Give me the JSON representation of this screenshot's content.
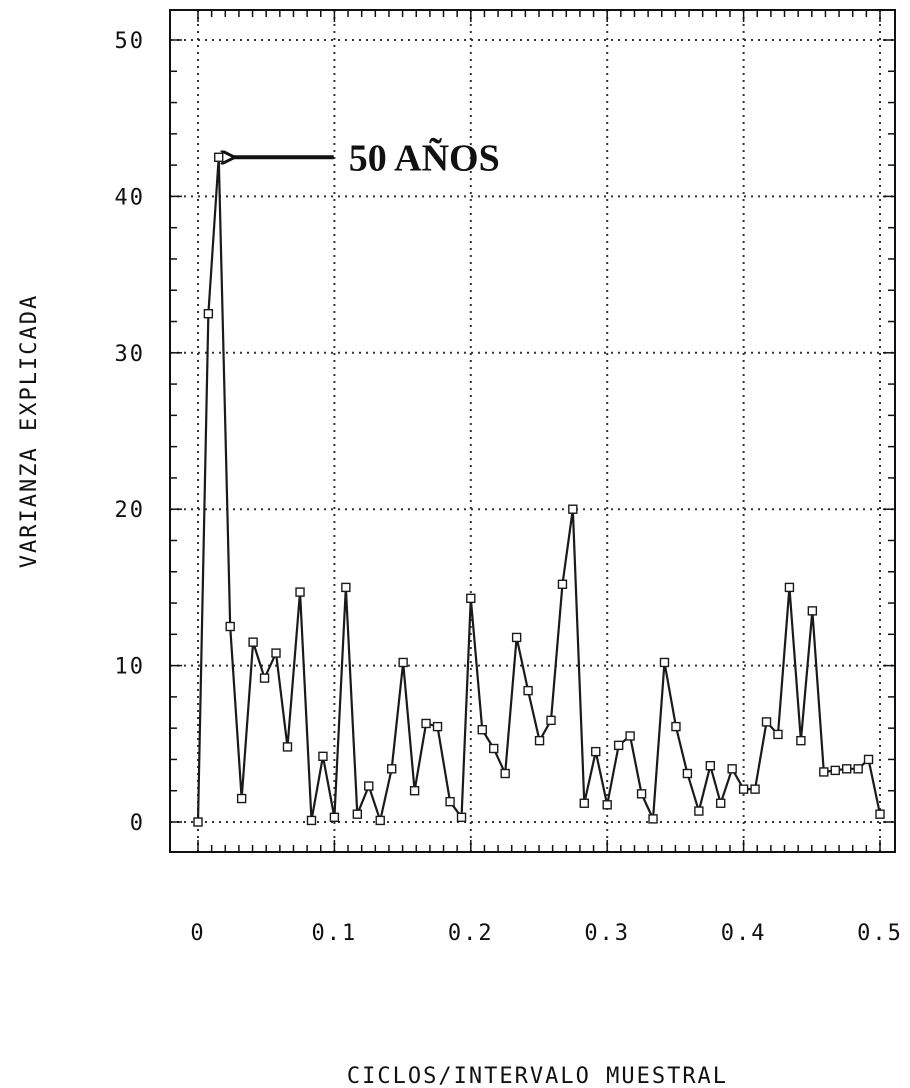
{
  "chart_data": {
    "type": "line",
    "xlabel": "CICLOS/INTERVALO MUESTRAL",
    "ylabel": "VARIANZA EXPLICADA",
    "xlim": [
      0,
      0.5
    ],
    "ylim": [
      0,
      50
    ],
    "x_ticks": [
      "0",
      "0.1",
      "0.2",
      "0.3",
      "0.4",
      "0.5"
    ],
    "y_ticks": [
      "0",
      "10",
      "20",
      "30",
      "40",
      "50"
    ],
    "x_tick_values": [
      0,
      0.1,
      0.2,
      0.3,
      0.4,
      0.5
    ],
    "y_tick_values": [
      0,
      10,
      20,
      30,
      40,
      50
    ],
    "grid": true,
    "marker": "square",
    "annotation": {
      "text": "50 AÑOS",
      "x": 0.0152,
      "y": 42.5
    },
    "series": [
      {
        "x": [
          0,
          0.0076,
          0.0152,
          0.0236,
          0.032,
          0.0404,
          0.0488,
          0.0572,
          0.0656,
          0.0748,
          0.0832,
          0.0916,
          0.1,
          0.1084,
          0.1168,
          0.1252,
          0.1336,
          0.142,
          0.1504,
          0.1588,
          0.1672,
          0.1756,
          0.1848,
          0.1932,
          0.2,
          0.2084,
          0.2168,
          0.2252,
          0.2336,
          0.242,
          0.2504,
          0.2588,
          0.2672,
          0.2748,
          0.2832,
          0.2916,
          0.3,
          0.3084,
          0.3168,
          0.3252,
          0.3336,
          0.342,
          0.3504,
          0.3588,
          0.3672,
          0.3756,
          0.3832,
          0.3916,
          0.4,
          0.4084,
          0.4168,
          0.4252,
          0.4336,
          0.442,
          0.4504,
          0.4588,
          0.4672,
          0.4756,
          0.484,
          0.4916,
          0.5
        ],
        "values": [
          0,
          32.5,
          42.5,
          12.5,
          1.5,
          11.5,
          9.2,
          10.8,
          4.8,
          14.7,
          0.1,
          4.2,
          0.3,
          15.0,
          0.5,
          2.3,
          0.1,
          3.4,
          10.2,
          2.0,
          6.3,
          6.1,
          1.3,
          0.3,
          14.3,
          5.9,
          4.7,
          3.1,
          11.8,
          8.4,
          5.2,
          6.5,
          15.2,
          20.0,
          1.2,
          4.5,
          1.1,
          4.9,
          5.5,
          1.8,
          0.2,
          10.2,
          6.1,
          3.1,
          0.7,
          3.6,
          1.2,
          3.4,
          2.1,
          2.1,
          6.4,
          5.6,
          15.0,
          5.2,
          13.5,
          3.2,
          3.3,
          3.4,
          3.4,
          4.0,
          0.5
        ]
      }
    ]
  }
}
